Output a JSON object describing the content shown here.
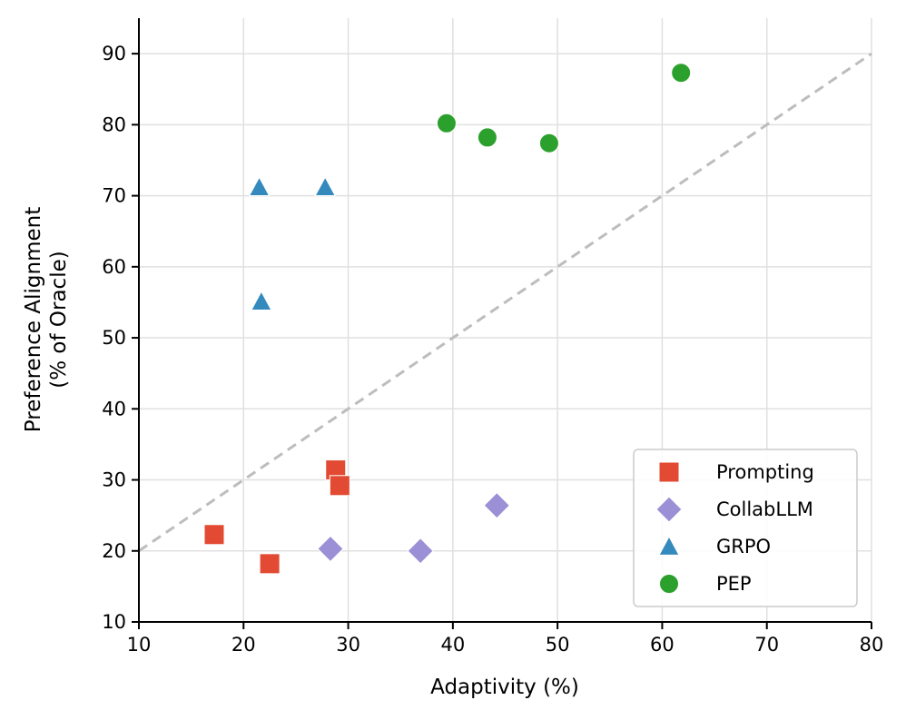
{
  "chart_data": {
    "type": "scatter",
    "title": "",
    "xlabel": "Adaptivity (%)",
    "ylabel": [
      "Preference Alignment",
      "(% of Oracle)"
    ],
    "xlim": [
      10,
      80
    ],
    "ylim": [
      10,
      95
    ],
    "xticks": [
      10,
      20,
      30,
      40,
      50,
      60,
      70,
      80
    ],
    "yticks": [
      10,
      20,
      30,
      40,
      50,
      60,
      70,
      80,
      90
    ],
    "grid": true,
    "legend_position": "bottom-right",
    "reference_line": {
      "style": "dashed",
      "color": "#bdbdbd",
      "x": [
        10,
        80
      ],
      "y": [
        20,
        90
      ]
    },
    "series": [
      {
        "name": "Prompting",
        "marker": "square",
        "color": "#e24a33",
        "points": [
          [
            17.2,
            22.3
          ],
          [
            22.5,
            18.2
          ],
          [
            28.8,
            31.4
          ],
          [
            29.2,
            29.2
          ]
        ]
      },
      {
        "name": "CollabLLM",
        "marker": "diamond",
        "color": "#9b8fd6",
        "points": [
          [
            28.3,
            20.3
          ],
          [
            36.9,
            20.0
          ],
          [
            44.2,
            26.4
          ]
        ]
      },
      {
        "name": "GRPO",
        "marker": "triangle",
        "color": "#348abd",
        "points": [
          [
            21.5,
            71.2
          ],
          [
            27.8,
            71.2
          ],
          [
            21.7,
            55.1
          ]
        ]
      },
      {
        "name": "PEP",
        "marker": "circle",
        "color": "#2ca02c",
        "points": [
          [
            39.4,
            80.2
          ],
          [
            43.3,
            78.2
          ],
          [
            49.2,
            77.4
          ],
          [
            61.8,
            87.3
          ]
        ]
      }
    ]
  }
}
